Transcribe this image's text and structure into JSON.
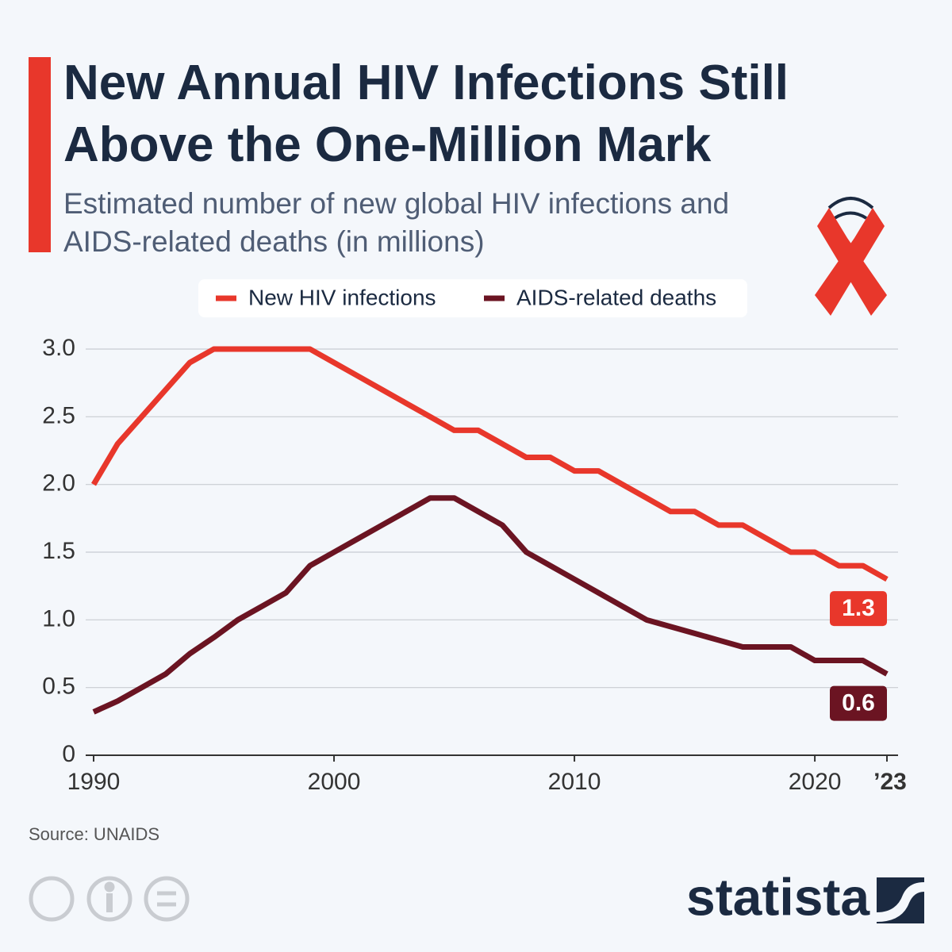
{
  "chart_data": {
    "type": "line",
    "title": "New Annual HIV Infections Still Above the One-Million Mark",
    "subtitle": "Estimated number of new global HIV infections and AIDS-related deaths (in millions)",
    "source": "Source: UNAIDS",
    "brand": "statista",
    "x": [
      1990,
      1991,
      1992,
      1993,
      1994,
      1995,
      1996,
      1997,
      1998,
      1999,
      2000,
      2001,
      2002,
      2003,
      2004,
      2005,
      2006,
      2007,
      2008,
      2009,
      2010,
      2011,
      2012,
      2013,
      2014,
      2015,
      2016,
      2017,
      2018,
      2019,
      2020,
      2021,
      2022,
      2023
    ],
    "series": [
      {
        "name": "New HIV infections",
        "color": "#e8372b",
        "values": [
          2.0,
          2.3,
          2.5,
          2.7,
          2.9,
          3.0,
          3.0,
          3.0,
          3.0,
          3.0,
          2.9,
          2.8,
          2.7,
          2.6,
          2.5,
          2.4,
          2.4,
          2.3,
          2.2,
          2.2,
          2.1,
          2.1,
          2.0,
          1.9,
          1.8,
          1.8,
          1.7,
          1.7,
          1.6,
          1.5,
          1.5,
          1.4,
          1.4,
          1.3
        ]
      },
      {
        "name": "AIDS-related deaths",
        "color": "#6b1422",
        "values": [
          0.32,
          0.4,
          0.5,
          0.6,
          0.75,
          0.87,
          1.0,
          1.1,
          1.2,
          1.4,
          1.5,
          1.6,
          1.7,
          1.8,
          1.9,
          1.9,
          1.8,
          1.7,
          1.5,
          1.4,
          1.3,
          1.2,
          1.1,
          1.0,
          0.95,
          0.9,
          0.85,
          0.8,
          0.8,
          0.8,
          0.7,
          0.7,
          0.7,
          0.6
        ]
      }
    ],
    "xlim": [
      1990,
      2023
    ],
    "xticks": [
      1990,
      2000,
      2010,
      2020,
      {
        "value": 2023,
        "label": "’23"
      }
    ],
    "ylim": [
      0,
      3
    ],
    "yticks": [
      0,
      0.5,
      {
        "value": 1,
        "label": "1.0"
      },
      1.5,
      {
        "value": 2,
        "label": "2.0"
      },
      2.5,
      {
        "value": 3,
        "label": "3.0"
      }
    ],
    "grid": true
  }
}
